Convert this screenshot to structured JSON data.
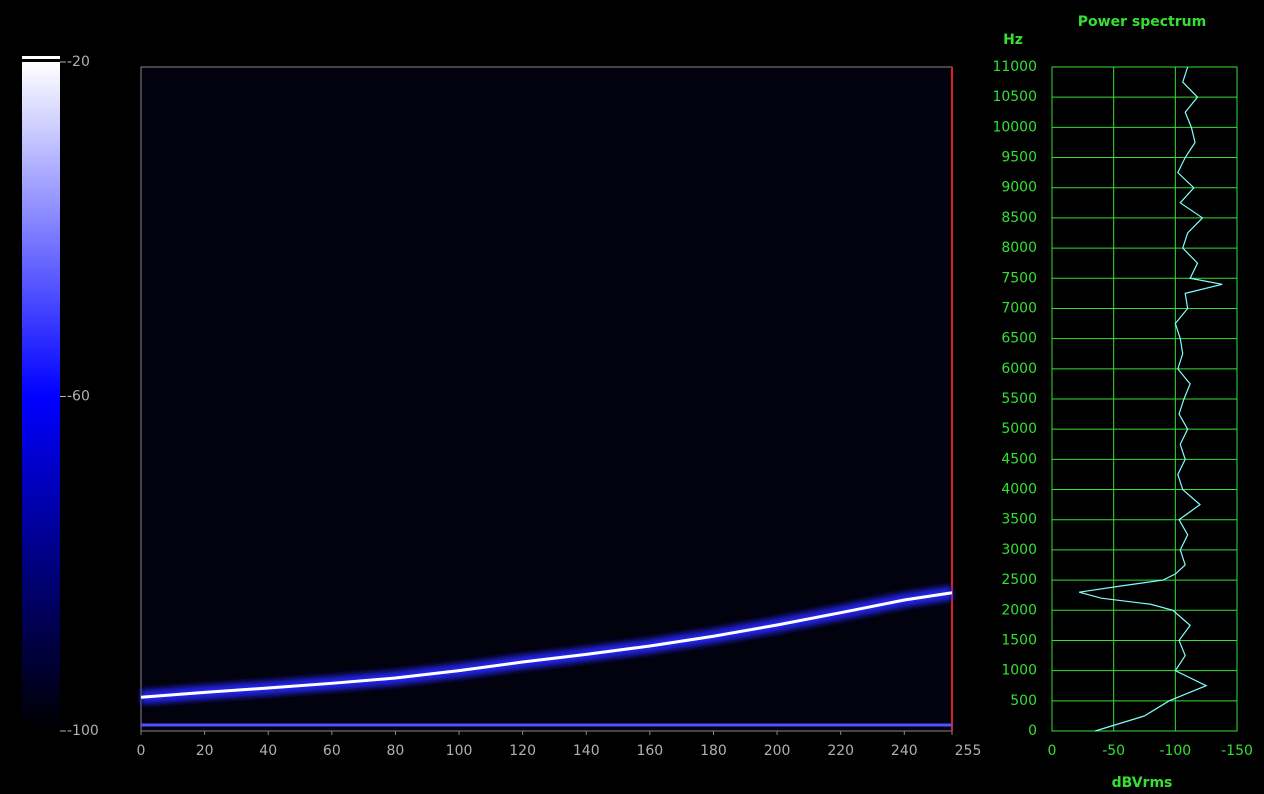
{
  "chart_data": [
    {
      "type": "spectrogram",
      "ylabel": "Hz",
      "xlim": [
        0,
        255
      ],
      "xticks": [
        0,
        20,
        40,
        60,
        80,
        100,
        120,
        140,
        160,
        180,
        200,
        220,
        240,
        255
      ],
      "ylim": [
        0,
        11000
      ],
      "yticks": [
        0,
        500,
        1000,
        1500,
        2000,
        2500,
        3000,
        3500,
        4000,
        4500,
        5000,
        5500,
        6000,
        6500,
        7000,
        7500,
        8000,
        8500,
        9000,
        9500,
        10000,
        10500,
        11000
      ],
      "series": [
        {
          "color": "#ffffff",
          "x": [
            0,
            20,
            40,
            60,
            80,
            100,
            120,
            140,
            160,
            180,
            200,
            220,
            240,
            255
          ],
          "values": [
            560,
            640,
            712,
            790,
            878,
            1000,
            1143,
            1270,
            1408,
            1570,
            1756,
            1960,
            2170,
            2290
          ]
        },
        {
          "color": "#5050ff",
          "x": [
            0,
            255
          ],
          "values": [
            100,
            100
          ]
        }
      ]
    },
    {
      "type": "power-spectrum",
      "title": "Power spectrum",
      "xlabel": "dBVrms",
      "xlim": [
        0,
        -150
      ],
      "xticks": [
        0,
        -50,
        -100,
        -150
      ],
      "grid": true,
      "color": "#80ffff",
      "x": [
        0,
        250,
        500,
        750,
        1000,
        1250,
        1500,
        1750,
        2000,
        2100,
        2200,
        2300,
        2400,
        2500,
        2600,
        2750,
        3000,
        3250,
        3500,
        3750,
        4000,
        4250,
        4500,
        4750,
        5000,
        5250,
        5500,
        5750,
        6000,
        6250,
        6500,
        6750,
        7000,
        7250,
        7400,
        7500,
        7750,
        8000,
        8250,
        8500,
        8750,
        9000,
        9250,
        9500,
        9750,
        10000,
        10250,
        10500,
        10750,
        11000
      ],
      "values": [
        -35,
        -75,
        -95,
        -125,
        -100,
        -108,
        -103,
        -112,
        -98,
        -80,
        -40,
        -22,
        -55,
        -90,
        -100,
        -108,
        -104,
        -110,
        -103,
        -120,
        -106,
        -102,
        -108,
        -104,
        -110,
        -103,
        -107,
        -112,
        -102,
        -106,
        -104,
        -100,
        -110,
        -108,
        -138,
        -112,
        -118,
        -106,
        -110,
        -122,
        -104,
        -115,
        -102,
        -108,
        -116,
        -113,
        -108,
        -118,
        -106,
        -110
      ]
    },
    {
      "type": "colorbar",
      "ylim": [
        -100,
        -20
      ],
      "yticks": [
        -20,
        -60,
        -100
      ],
      "colors": [
        "#000000",
        "#0000ff",
        "#ffffff"
      ]
    }
  ]
}
